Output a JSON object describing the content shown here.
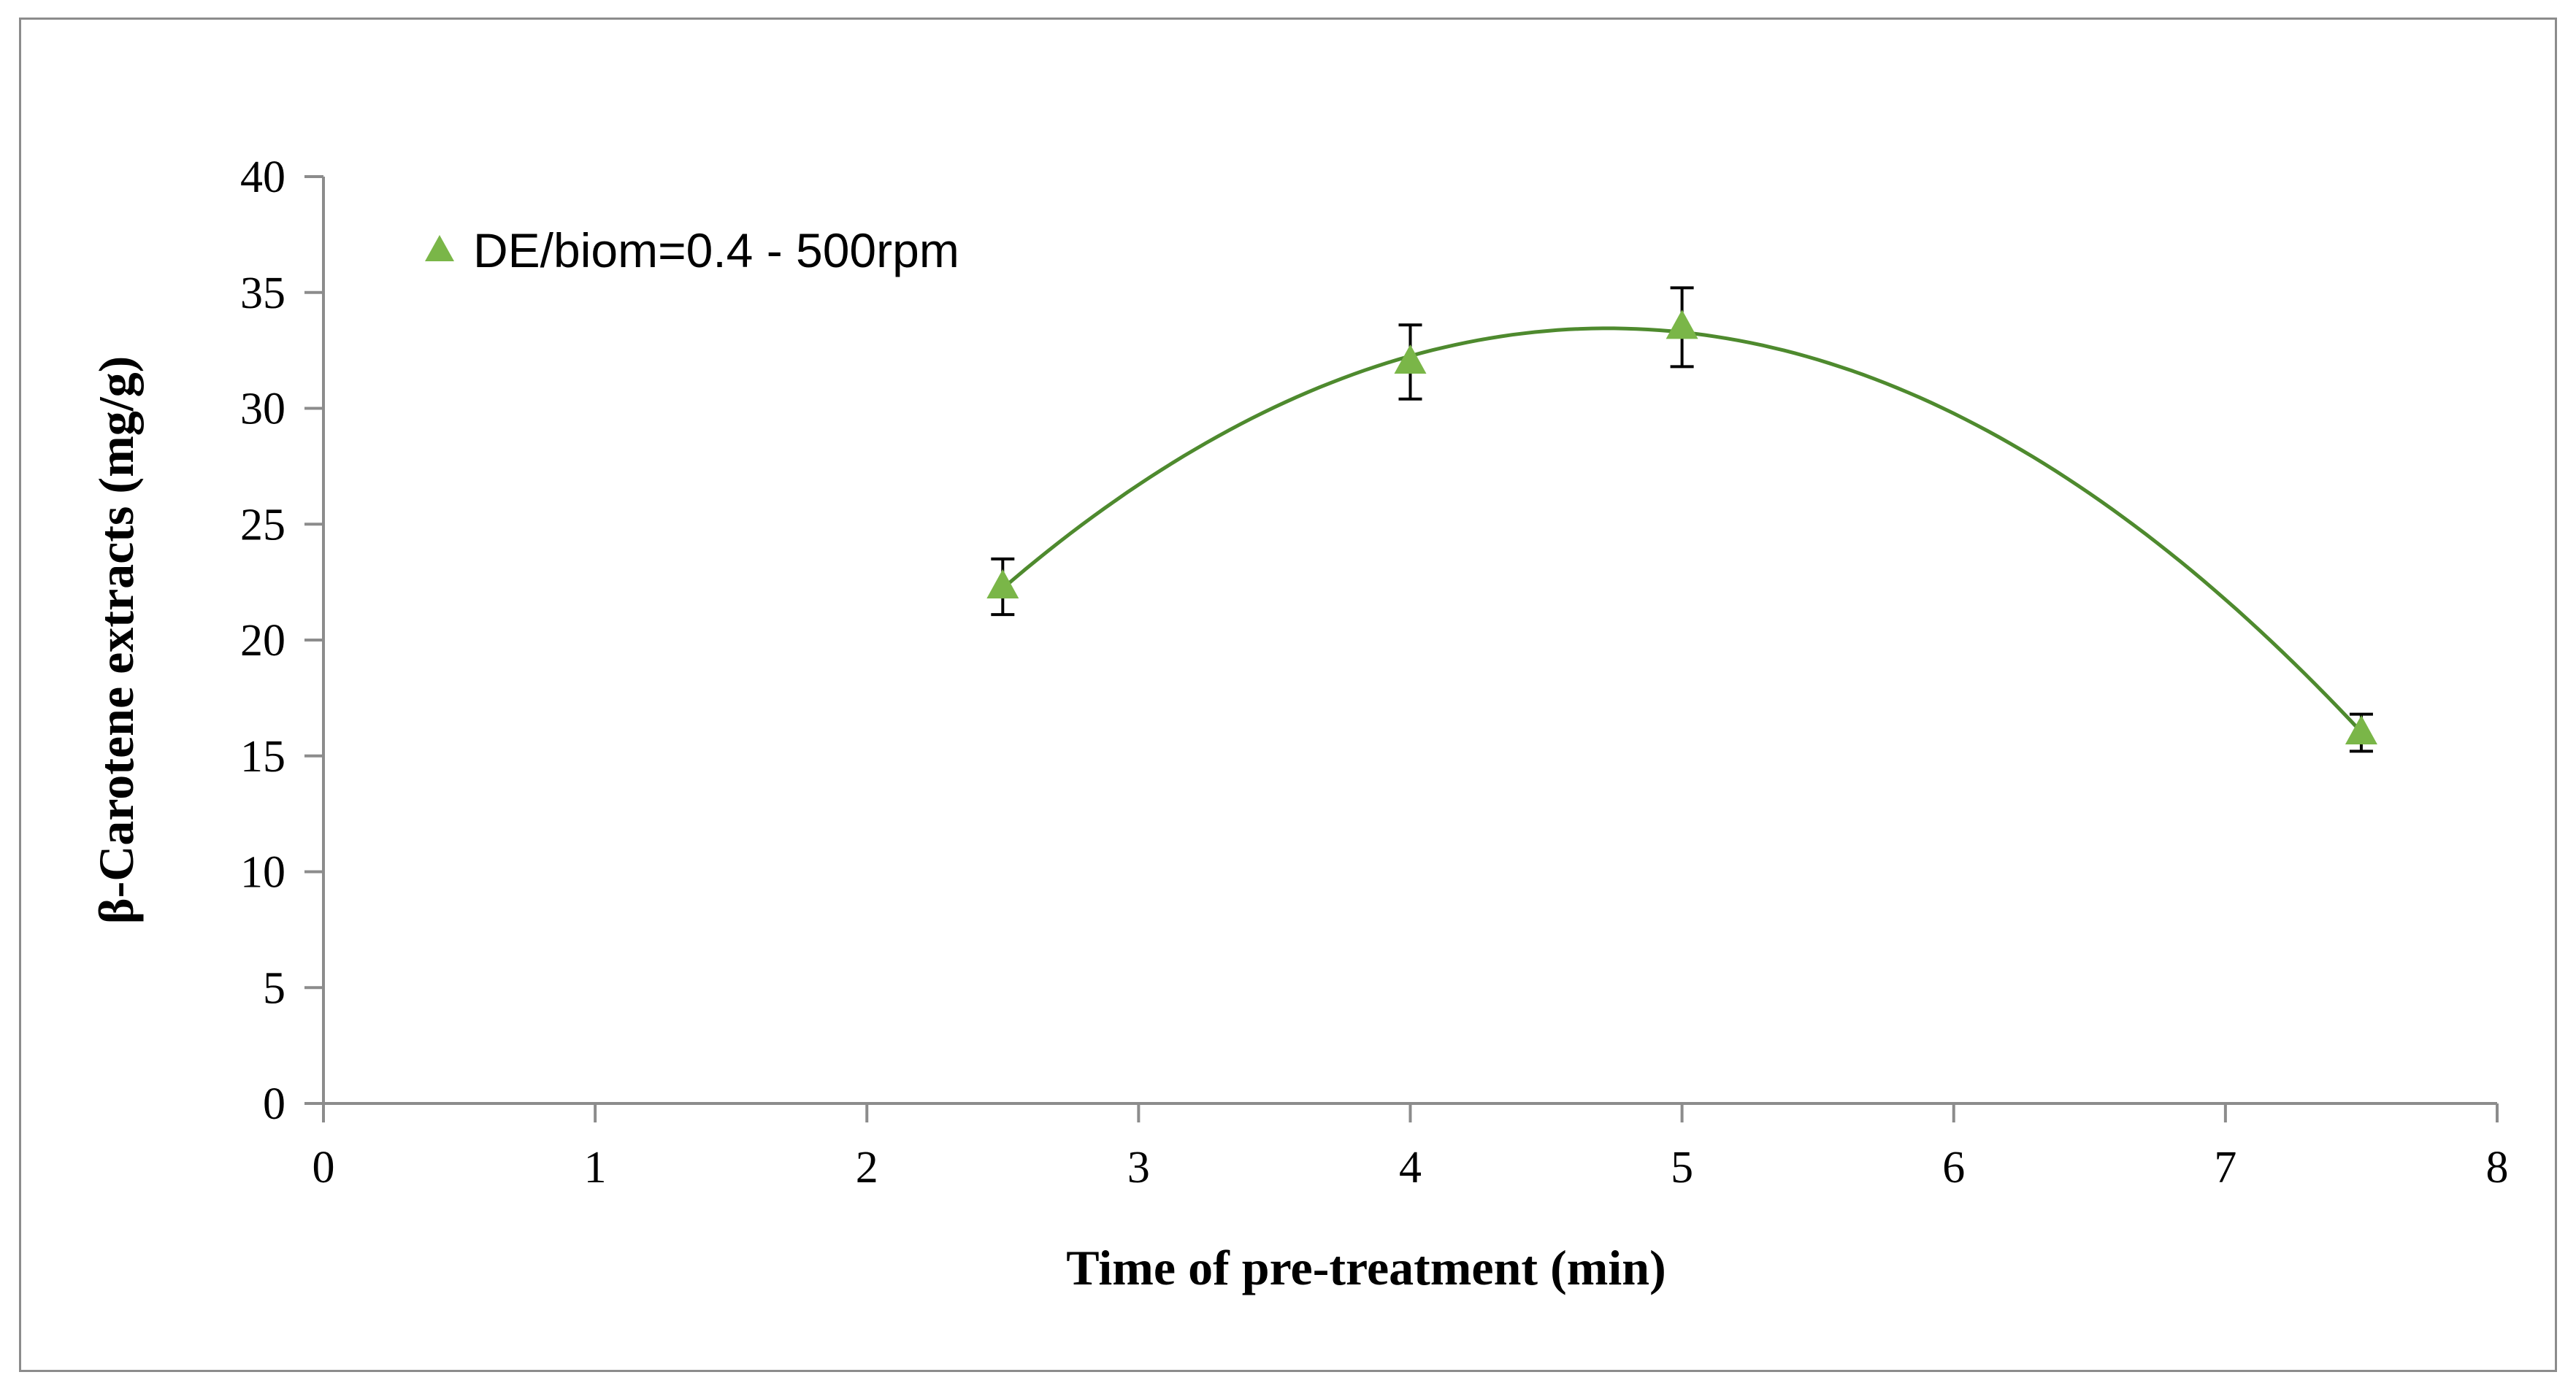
{
  "chart_data": {
    "type": "scatter",
    "title": "",
    "xlabel": "Time of pre-treatment (min)",
    "ylabel": "β-Carotene extracts (mg/g)",
    "xlim": [
      0,
      8
    ],
    "ylim": [
      0,
      40
    ],
    "xticks": [
      0,
      1,
      2,
      3,
      4,
      5,
      6,
      7,
      8
    ],
    "yticks": [
      0,
      5,
      10,
      15,
      20,
      25,
      30,
      35,
      40
    ],
    "grid": false,
    "legend_position": "top-left",
    "series": [
      {
        "name": "DE/biom=0.4 - 500rpm",
        "marker": "triangle",
        "color": "#7ab648",
        "trendline_color": "#4e8a2e",
        "trendline": "polynomial (order 2)",
        "points": [
          {
            "x": 2.5,
            "y": 22.3,
            "error": 1.2
          },
          {
            "x": 4.0,
            "y": 32.0,
            "error": 1.6
          },
          {
            "x": 5.0,
            "y": 33.5,
            "error": 1.7
          },
          {
            "x": 7.5,
            "y": 16.0,
            "error": 0.8
          }
        ]
      }
    ]
  }
}
